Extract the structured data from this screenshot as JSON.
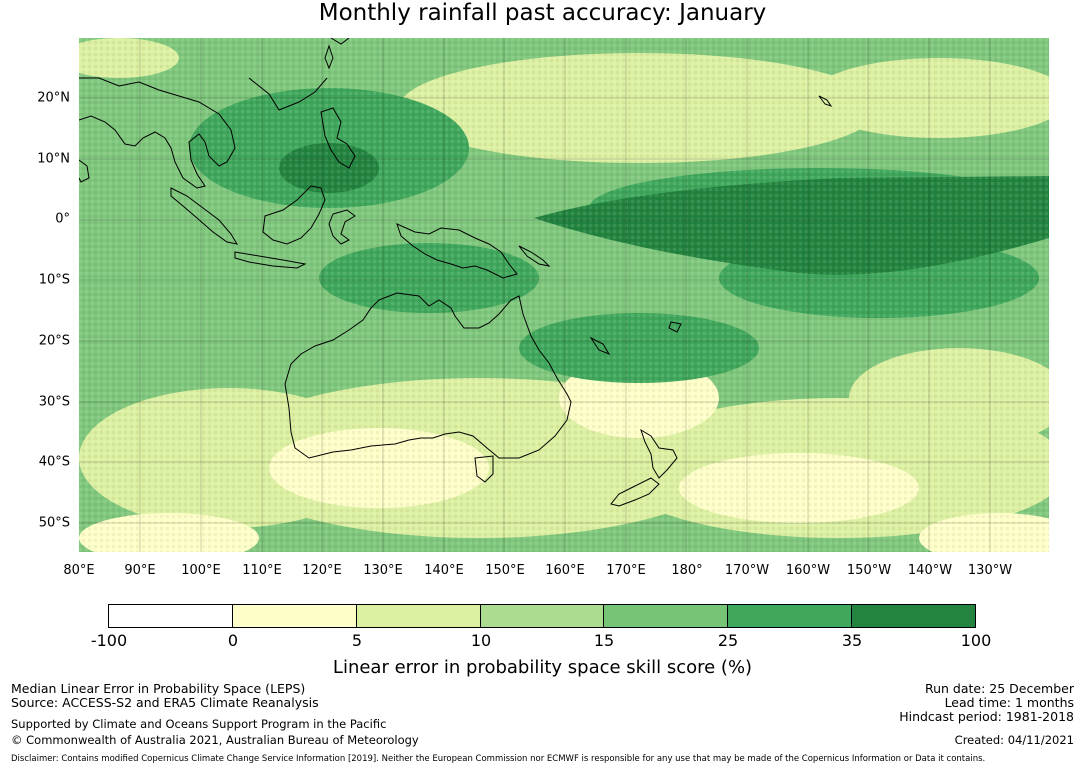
{
  "title": "Monthly rainfall past accuracy: January",
  "map": {
    "latitude_labels": [
      "20°N",
      "10°N",
      "0°",
      "10°S",
      "20°S",
      "30°S",
      "40°S",
      "50°S"
    ],
    "longitude_labels": [
      "80°E",
      "90°E",
      "100°E",
      "110°E",
      "120°E",
      "130°E",
      "140°E",
      "150°E",
      "160°E",
      "170°E",
      "180°",
      "170°W",
      "160°W",
      "150°W",
      "140°W",
      "130°W"
    ]
  },
  "colorbar": {
    "ticks": [
      "-100",
      "0",
      "5",
      "10",
      "15",
      "25",
      "35",
      "100"
    ],
    "colors": [
      "#ffffff",
      "#fefec8",
      "#dcf0a2",
      "#acdc90",
      "#78c476",
      "#40a85c",
      "#23843f"
    ],
    "label": "Linear error in probability space skill score (%)"
  },
  "footer": {
    "method": "Median Linear Error in Probability Space (LEPS)",
    "source": "Source: ACCESS-S2 and ERA5 Climate Reanalysis",
    "support": "Supported by Climate and Oceans Support Program in the Pacific",
    "copyright": "© Commonwealth of Australia 2021, Australian Bureau of Meteorology",
    "run_date": "Run date: 25 December",
    "lead_time": "Lead time: 1 months",
    "hindcast": "Hindcast period: 1981-2018",
    "created": "Created: 04/11/2021",
    "disclaimer": "Disclaimer: Contains modified Copernicus Climate Change Service Information [2019]. Neither the European Commission nor ECMWF is responsible for any use that may be made of the Copernicus Information or Data it contains."
  }
}
